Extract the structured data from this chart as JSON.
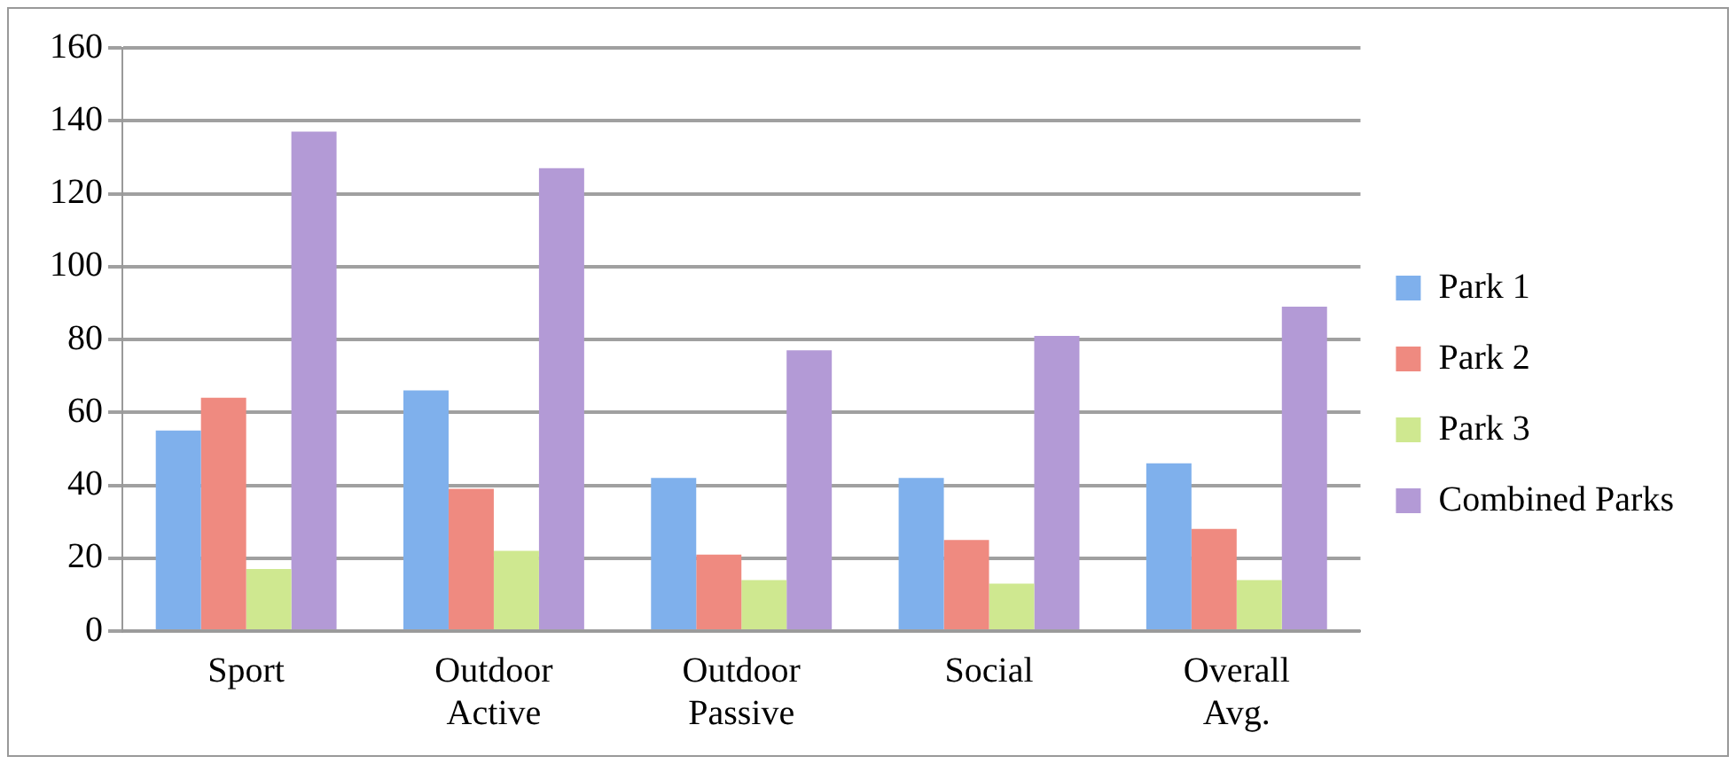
{
  "chart_data": {
    "type": "bar",
    "categories": [
      "Sport",
      "Outdoor Active",
      "Outdoor Passive",
      "Social",
      "Overall Avg."
    ],
    "series": [
      {
        "name": "Park 1",
        "color": "#7fb0ec",
        "values": [
          55,
          66,
          42,
          42,
          46
        ]
      },
      {
        "name": "Park 2",
        "color": "#ef8a80",
        "values": [
          64,
          39,
          21,
          25,
          28
        ]
      },
      {
        "name": "Park 3",
        "color": "#cfe890",
        "values": [
          17,
          22,
          14,
          13,
          14
        ]
      },
      {
        "name": "Combined Parks",
        "color": "#b39ad6",
        "values": [
          137,
          127,
          77,
          81,
          89
        ]
      }
    ],
    "ylim": [
      0,
      160
    ],
    "yticks": [
      0,
      20,
      40,
      60,
      80,
      100,
      120,
      140,
      160
    ],
    "grid": "y",
    "legend": "right"
  }
}
